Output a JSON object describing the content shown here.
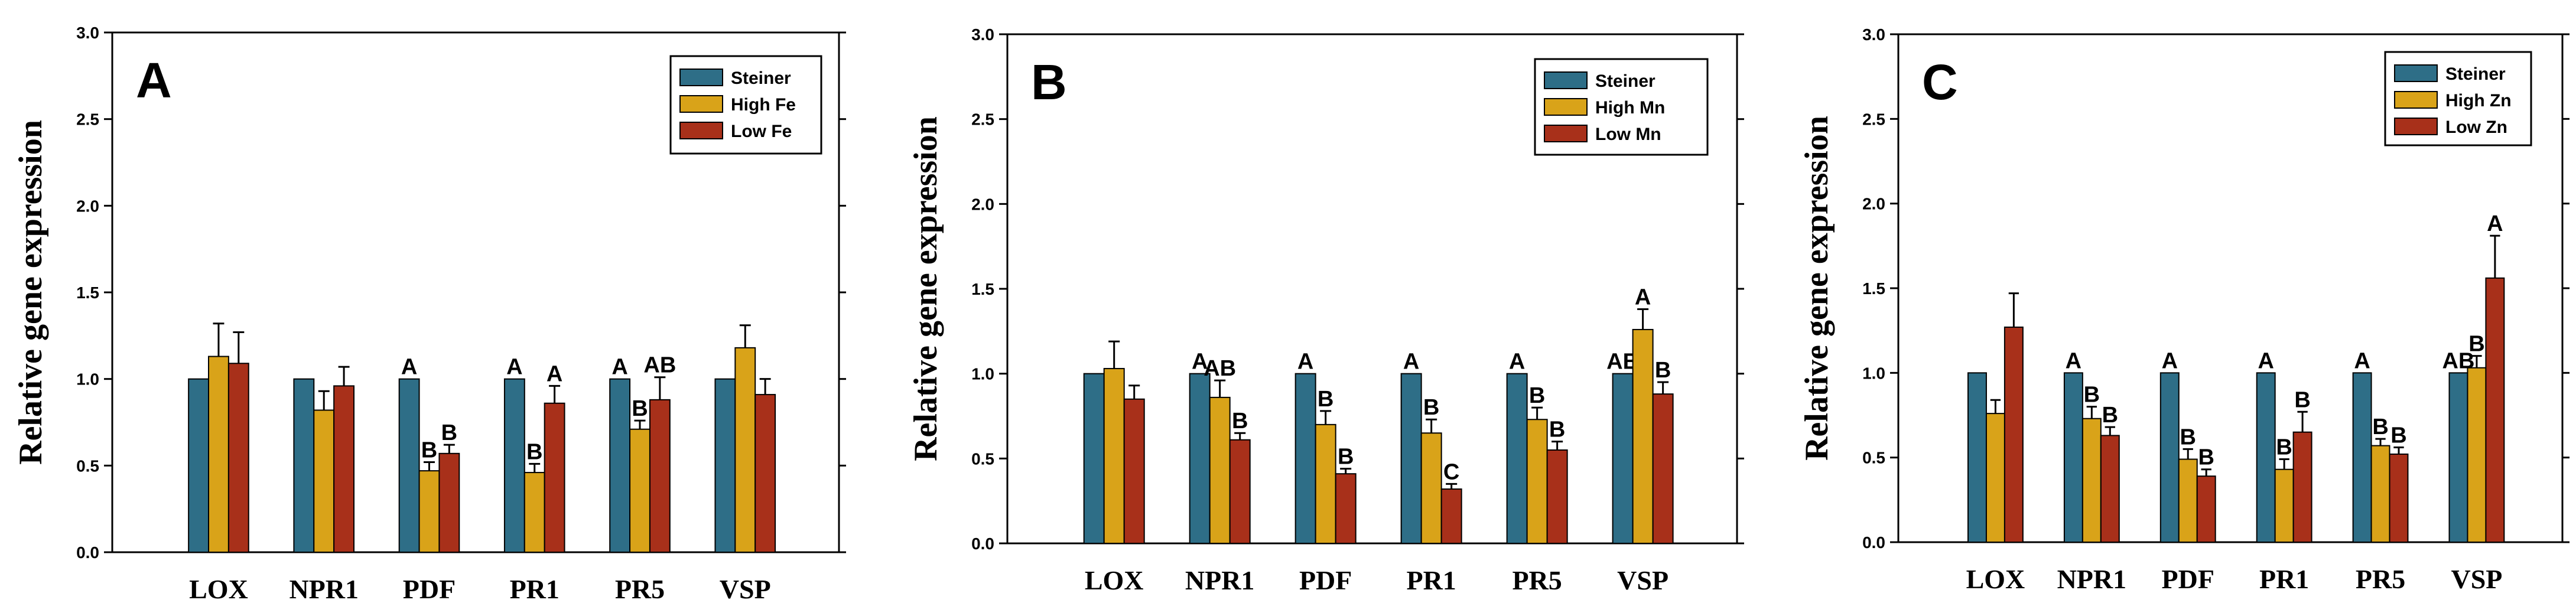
{
  "colors": {
    "Steiner": "#2e6e87",
    "High": "#d9a319",
    "Low": "#a8301a",
    "axis": "#000000"
  },
  "chart_data": [
    {
      "type": "bar",
      "panel_label": "A",
      "ylabel": "Relative gene expression",
      "ylim": [
        0,
        3.0
      ],
      "yticks": [
        "0.0",
        "0.5",
        "1.0",
        "1.5",
        "2.0",
        "2.5",
        "3.0"
      ],
      "categories": [
        "LOX",
        "NPR1",
        "PDF",
        "PR1",
        "PR5",
        "VSP"
      ],
      "series": [
        {
          "name": "Steiner",
          "values": [
            1.0,
            1.0,
            1.0,
            1.0,
            1.0,
            1.0
          ],
          "errors": [
            0,
            0,
            0,
            0,
            0,
            0
          ],
          "labels": [
            "",
            "",
            "A",
            "A",
            "A",
            ""
          ]
        },
        {
          "name": "High Fe",
          "values": [
            1.13,
            0.82,
            0.47,
            0.46,
            0.71,
            1.18
          ],
          "errors": [
            0.19,
            0.11,
            0.05,
            0.05,
            0.05,
            0.13
          ],
          "labels": [
            "",
            "",
            "B",
            "B",
            "B",
            ""
          ]
        },
        {
          "name": "Low Fe",
          "values": [
            1.09,
            0.96,
            0.57,
            0.86,
            0.88,
            0.91
          ],
          "errors": [
            0.18,
            0.11,
            0.05,
            0.1,
            0.13,
            0.09
          ],
          "labels": [
            "",
            "",
            "B",
            "A",
            "AB",
            ""
          ]
        }
      ],
      "legend": [
        "Steiner",
        "High Fe",
        "Low Fe"
      ],
      "legend_position": "top-right"
    },
    {
      "type": "bar",
      "panel_label": "B",
      "ylabel": "Relative gene expression",
      "ylim": [
        0,
        3.0
      ],
      "yticks": [
        "0.0",
        "0.5",
        "1.0",
        "1.5",
        "2.0",
        "2.5",
        "3.0"
      ],
      "categories": [
        "LOX",
        "NPR1",
        "PDF",
        "PR1",
        "PR5",
        "VSP"
      ],
      "series": [
        {
          "name": "Steiner",
          "values": [
            1.0,
            1.0,
            1.0,
            1.0,
            1.0,
            1.0
          ],
          "errors": [
            0,
            0,
            0,
            0,
            0,
            0
          ],
          "labels": [
            "",
            "A",
            "A",
            "A",
            "A",
            "AB"
          ]
        },
        {
          "name": "High Mn",
          "values": [
            1.03,
            0.86,
            0.7,
            0.65,
            0.73,
            1.26
          ],
          "errors": [
            0.16,
            0.1,
            0.08,
            0.08,
            0.07,
            0.12
          ],
          "labels": [
            "",
            "AB",
            "B",
            "B",
            "B",
            "A"
          ]
        },
        {
          "name": "Low Mn",
          "values": [
            0.85,
            0.61,
            0.41,
            0.32,
            0.55,
            0.88
          ],
          "errors": [
            0.08,
            0.04,
            0.03,
            0.03,
            0.05,
            0.07
          ],
          "labels": [
            "",
            "B",
            "B",
            "C",
            "B",
            "B"
          ]
        }
      ],
      "legend": [
        "Steiner",
        "High Mn",
        "Low Mn"
      ],
      "legend_position": "top-right"
    },
    {
      "type": "bar",
      "panel_label": "C",
      "ylabel": "Relative gene expression",
      "ylim": [
        0,
        3.0
      ],
      "yticks": [
        "0.0",
        "0.5",
        "1.0",
        "1.5",
        "2.0",
        "2.5",
        "3.0"
      ],
      "categories": [
        "LOX",
        "NPR1",
        "PDF",
        "PR1",
        "PR5",
        "VSP"
      ],
      "series": [
        {
          "name": "Steiner",
          "values": [
            1.0,
            1.0,
            1.0,
            1.0,
            1.0,
            1.0
          ],
          "errors": [
            0,
            0,
            0,
            0,
            0,
            0
          ],
          "labels": [
            "",
            "A",
            "A",
            "A",
            "A",
            "AB"
          ]
        },
        {
          "name": "High Zn",
          "values": [
            0.76,
            0.73,
            0.49,
            0.43,
            0.57,
            1.03
          ],
          "errors": [
            0.08,
            0.07,
            0.06,
            0.06,
            0.04,
            0.07
          ],
          "labels": [
            "",
            "B",
            "B",
            "B",
            "B",
            "B"
          ]
        },
        {
          "name": "Low Zn",
          "values": [
            1.27,
            0.63,
            0.39,
            0.65,
            0.52,
            1.56
          ],
          "errors": [
            0.2,
            0.05,
            0.04,
            0.12,
            0.04,
            0.25
          ],
          "labels": [
            "",
            "B",
            "B",
            "B",
            "B",
            "A"
          ]
        }
      ],
      "legend": [
        "Steiner",
        "High Zn",
        "Low Zn"
      ],
      "legend_position": "top-right"
    }
  ]
}
